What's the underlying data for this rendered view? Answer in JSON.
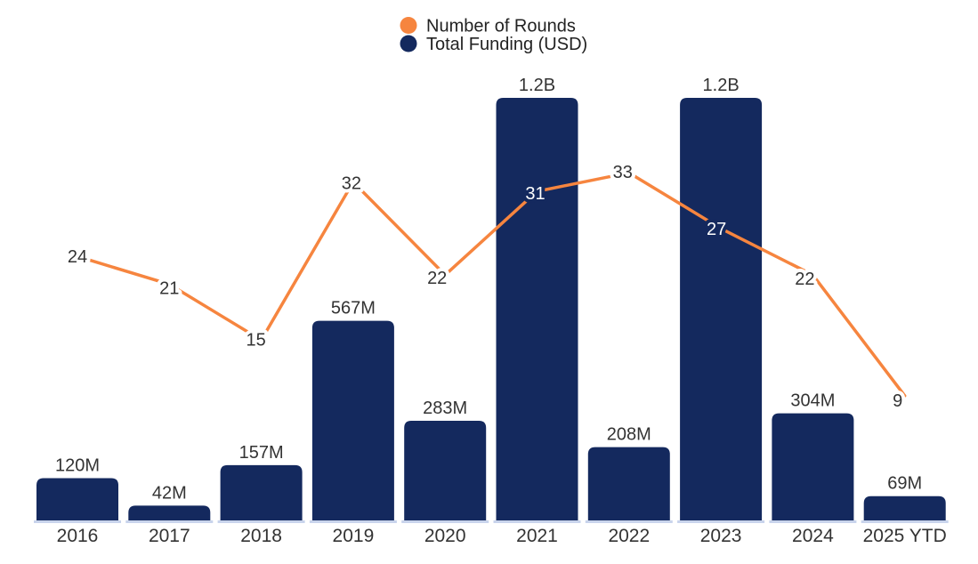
{
  "legend": {
    "items": [
      {
        "label": "Number of Rounds",
        "color": "#f6853f"
      },
      {
        "label": "Total Funding (USD)",
        "color": "#14295e"
      }
    ]
  },
  "colors": {
    "orange": "#f6853f",
    "navy": "#14295e",
    "label_text": "#333333",
    "white_label_text": "#ffffff",
    "bar_base_line": "#c9d4ec",
    "background": "#ffffff"
  },
  "chart_data": {
    "type": "bar",
    "subtype": "combo-bar-line",
    "categories": [
      "2016",
      "2017",
      "2018",
      "2019",
      "2020",
      "2021",
      "2022",
      "2023",
      "2024",
      "2025 YTD"
    ],
    "series": [
      {
        "name": "Number of Rounds",
        "type": "line",
        "color": "#f6853f",
        "values": [
          24,
          21,
          15,
          32,
          22,
          31,
          33,
          27,
          22,
          9
        ]
      },
      {
        "name": "Total Funding (USD)",
        "type": "bar",
        "color": "#14295e",
        "values_million_usd": [
          120,
          42,
          157,
          567,
          283,
          1200,
          208,
          1200,
          304,
          69
        ],
        "labels": [
          "120M",
          "42M",
          "157M",
          "567M",
          "283M",
          "1.2B",
          "208M",
          "1.2B",
          "304M",
          "69M"
        ]
      }
    ],
    "title": "",
    "xlabel": "",
    "ylabel": "",
    "grid": false,
    "axes_visible": false,
    "legend_position": "top-center",
    "bar_value_labels_shown": true,
    "line_value_labels_shown": true
  }
}
